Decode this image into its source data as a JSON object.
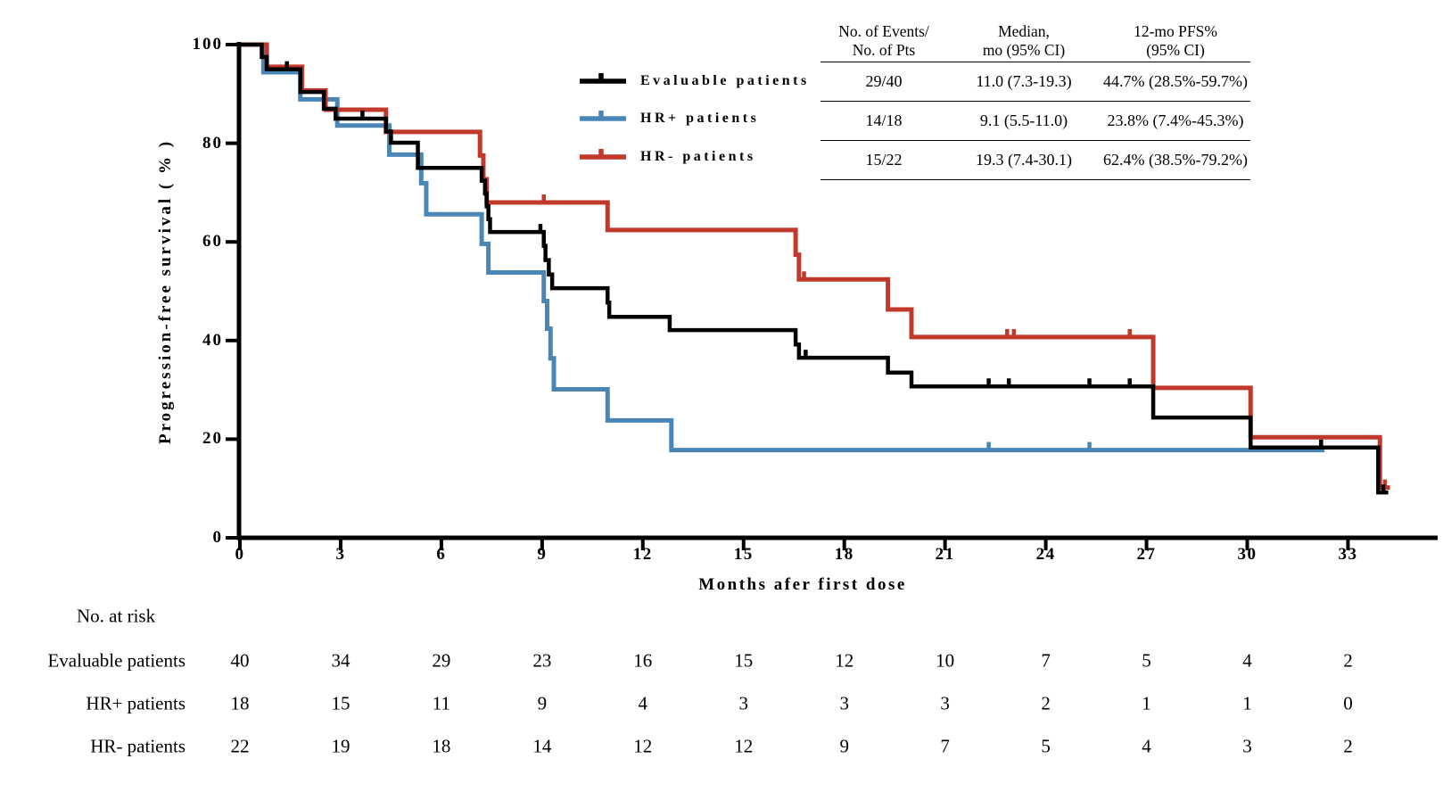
{
  "stats_table": {
    "headers": [
      [
        "No. of Events/",
        "No. of Pts"
      ],
      [
        "Median,",
        "mo (95% CI)"
      ],
      [
        "12-mo PFS%",
        "(95% CI)"
      ]
    ],
    "rows": [
      [
        "29/40",
        "11.0 (7.3-19.3)",
        "44.7% (28.5%-59.7%)"
      ],
      [
        "14/18",
        "9.1 (5.5-11.0)",
        "23.8% (7.4%-45.3%)"
      ],
      [
        "15/22",
        "19.3 (7.4-30.1)",
        "62.4% (38.5%-79.2%)"
      ]
    ]
  },
  "risk_table": {
    "title": "No. at risk",
    "rows": [
      {
        "label": "Evaluable patients",
        "values": [
          40,
          34,
          29,
          23,
          16,
          15,
          12,
          10,
          7,
          5,
          4,
          2
        ]
      },
      {
        "label": "HR+ patients",
        "values": [
          18,
          15,
          11,
          9,
          4,
          3,
          3,
          3,
          2,
          1,
          1,
          0
        ]
      },
      {
        "label": "HR- patients",
        "values": [
          22,
          19,
          18,
          14,
          12,
          12,
          9,
          7,
          5,
          4,
          3,
          2
        ]
      }
    ]
  },
  "chart_data": {
    "type": "line",
    "subtype": "kaplan-meier-step",
    "xlabel": "Months afer first dose",
    "ylabel": "Progression-free survival ( % )",
    "xlim": [
      0,
      35.6
    ],
    "ylim": [
      0,
      100
    ],
    "x_ticks": [
      0,
      3,
      6,
      9,
      12,
      15,
      18,
      21,
      24,
      27,
      30,
      33
    ],
    "y_ticks": [
      0,
      20,
      40,
      60,
      80,
      100
    ],
    "grid": false,
    "legend_position": "upper-center-left",
    "series": [
      {
        "name": "Evaluable patients",
        "color": "#000000",
        "width": 4.5,
        "start": [
          0,
          100
        ],
        "steps": [
          [
            0.65,
            97.5
          ],
          [
            0.8,
            95.0
          ],
          [
            1.8,
            90.4
          ],
          [
            2.5,
            87.0
          ],
          [
            2.85,
            85.0
          ],
          [
            4.35,
            82.4
          ],
          [
            4.5,
            80.1
          ],
          [
            5.3,
            75.0
          ],
          [
            7.2,
            72.4
          ],
          [
            7.3,
            69.8
          ],
          [
            7.35,
            67.2
          ],
          [
            7.4,
            64.6
          ],
          [
            7.45,
            62.0
          ],
          [
            9.05,
            59.2
          ],
          [
            9.1,
            56.3
          ],
          [
            9.2,
            53.4
          ],
          [
            9.3,
            50.6
          ],
          [
            10.95,
            47.7
          ],
          [
            11.0,
            44.8
          ],
          [
            12.8,
            42.1
          ],
          [
            16.55,
            39.2
          ],
          [
            16.65,
            36.5
          ],
          [
            19.3,
            33.5
          ],
          [
            20.0,
            30.7
          ],
          [
            27.2,
            24.4
          ],
          [
            30.1,
            18.3
          ],
          [
            33.9,
            9.2
          ]
        ],
        "censors": [
          [
            1.4,
            95.0
          ],
          [
            3.65,
            85.0
          ],
          [
            8.95,
            62.0
          ],
          [
            16.85,
            36.5
          ],
          [
            22.3,
            30.7
          ],
          [
            22.9,
            30.7
          ],
          [
            25.3,
            30.7
          ],
          [
            26.5,
            30.7
          ],
          [
            32.2,
            18.3
          ],
          [
            34.05,
            9.2
          ]
        ],
        "end": 34.2
      },
      {
        "name": "HR+ patients",
        "color": "#4A86B5",
        "width": 5,
        "start": [
          0,
          100
        ],
        "steps": [
          [
            0.7,
            94.4
          ],
          [
            1.8,
            88.9
          ],
          [
            2.9,
            83.6
          ],
          [
            4.45,
            77.7
          ],
          [
            5.4,
            71.9
          ],
          [
            5.55,
            65.6
          ],
          [
            7.2,
            59.6
          ],
          [
            7.4,
            53.8
          ],
          [
            9.05,
            48.0
          ],
          [
            9.15,
            42.4
          ],
          [
            9.25,
            36.4
          ],
          [
            9.35,
            30.1
          ],
          [
            10.95,
            23.8
          ],
          [
            12.85,
            17.8
          ]
        ],
        "censors": [
          [
            22.3,
            17.8
          ],
          [
            25.3,
            17.8
          ],
          [
            32.2,
            17.8
          ]
        ],
        "end": 32.3
      },
      {
        "name": "HR- patients",
        "color": "#C0392B",
        "width": 5,
        "start": [
          0,
          100
        ],
        "steps": [
          [
            0.8,
            95.5
          ],
          [
            1.85,
            90.7
          ],
          [
            2.55,
            86.8
          ],
          [
            4.35,
            82.3
          ],
          [
            7.15,
            77.5
          ],
          [
            7.25,
            72.7
          ],
          [
            7.35,
            68.0
          ],
          [
            10.95,
            62.4
          ],
          [
            16.55,
            57.4
          ],
          [
            16.65,
            52.4
          ],
          [
            19.3,
            46.3
          ],
          [
            20.0,
            40.7
          ],
          [
            27.2,
            30.4
          ],
          [
            30.1,
            20.4
          ],
          [
            33.95,
            10.2
          ]
        ],
        "censors": [
          [
            9.05,
            68.0
          ],
          [
            16.8,
            52.4
          ],
          [
            22.85,
            40.7
          ],
          [
            23.05,
            40.7
          ],
          [
            26.5,
            40.7
          ],
          [
            34.1,
            10.2
          ]
        ],
        "end": 34.25
      }
    ]
  }
}
